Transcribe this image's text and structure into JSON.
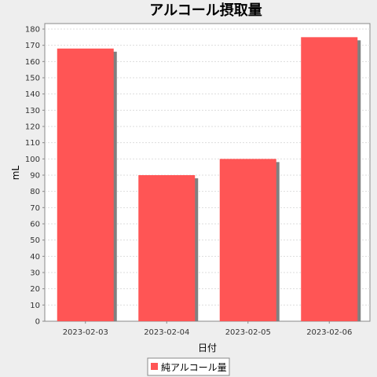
{
  "chart_data": {
    "type": "bar",
    "title": "アルコール摂取量",
    "xlabel": "日付",
    "ylabel": "mL",
    "categories": [
      "2023-02-03",
      "2023-02-04",
      "2023-02-05",
      "2023-02-06"
    ],
    "series": [
      {
        "name": "純アルコール量",
        "values": [
          168,
          90,
          100,
          175
        ],
        "color": "#ff5555",
        "shadow_color": "#808080"
      }
    ],
    "ylim": [
      0,
      180
    ],
    "yticks": [
      0,
      10,
      20,
      30,
      40,
      50,
      60,
      70,
      80,
      90,
      100,
      110,
      120,
      130,
      140,
      150,
      160,
      170,
      180
    ],
    "grid": true,
    "legend_position": "bottom"
  },
  "colors": {
    "background": "#eeeeee",
    "plot_background": "#ffffff",
    "gridline": "#dddddd",
    "axis": "#888888"
  }
}
